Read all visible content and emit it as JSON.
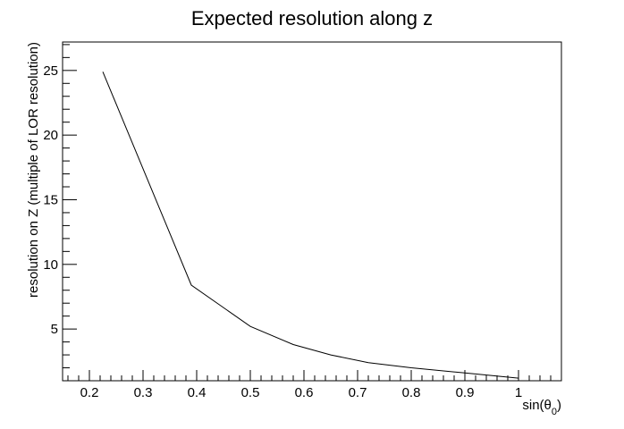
{
  "chart_data": {
    "type": "line",
    "title": "Expected resolution along z",
    "xlabel": "sin(θ0)",
    "ylabel": "resolution on Z (multiple of LOR resolution)",
    "xlim": [
      0.15,
      1.08
    ],
    "ylim": [
      1.0,
      27.2
    ],
    "x_major_ticks": [
      0.2,
      0.3,
      0.4,
      0.5,
      0.6,
      0.7,
      0.8,
      0.9,
      1
    ],
    "x_tick_labels": [
      "0.2",
      "0.3",
      "0.4",
      "0.5",
      "0.6",
      "0.7",
      "0.8",
      "0.9",
      "1"
    ],
    "y_major_ticks": [
      5,
      10,
      15,
      20,
      25
    ],
    "y_tick_labels": [
      "5",
      "10",
      "15",
      "20",
      "25"
    ],
    "grid": false,
    "legend": "none",
    "line_color": "#000000",
    "series": [
      {
        "x": [
          0.225,
          0.39,
          0.5,
          0.58,
          0.65,
          0.72,
          0.8,
          0.9,
          1.0
        ],
        "y": [
          24.9,
          8.4,
          5.2,
          3.8,
          3.0,
          2.4,
          2.0,
          1.6,
          1.2
        ]
      }
    ]
  }
}
